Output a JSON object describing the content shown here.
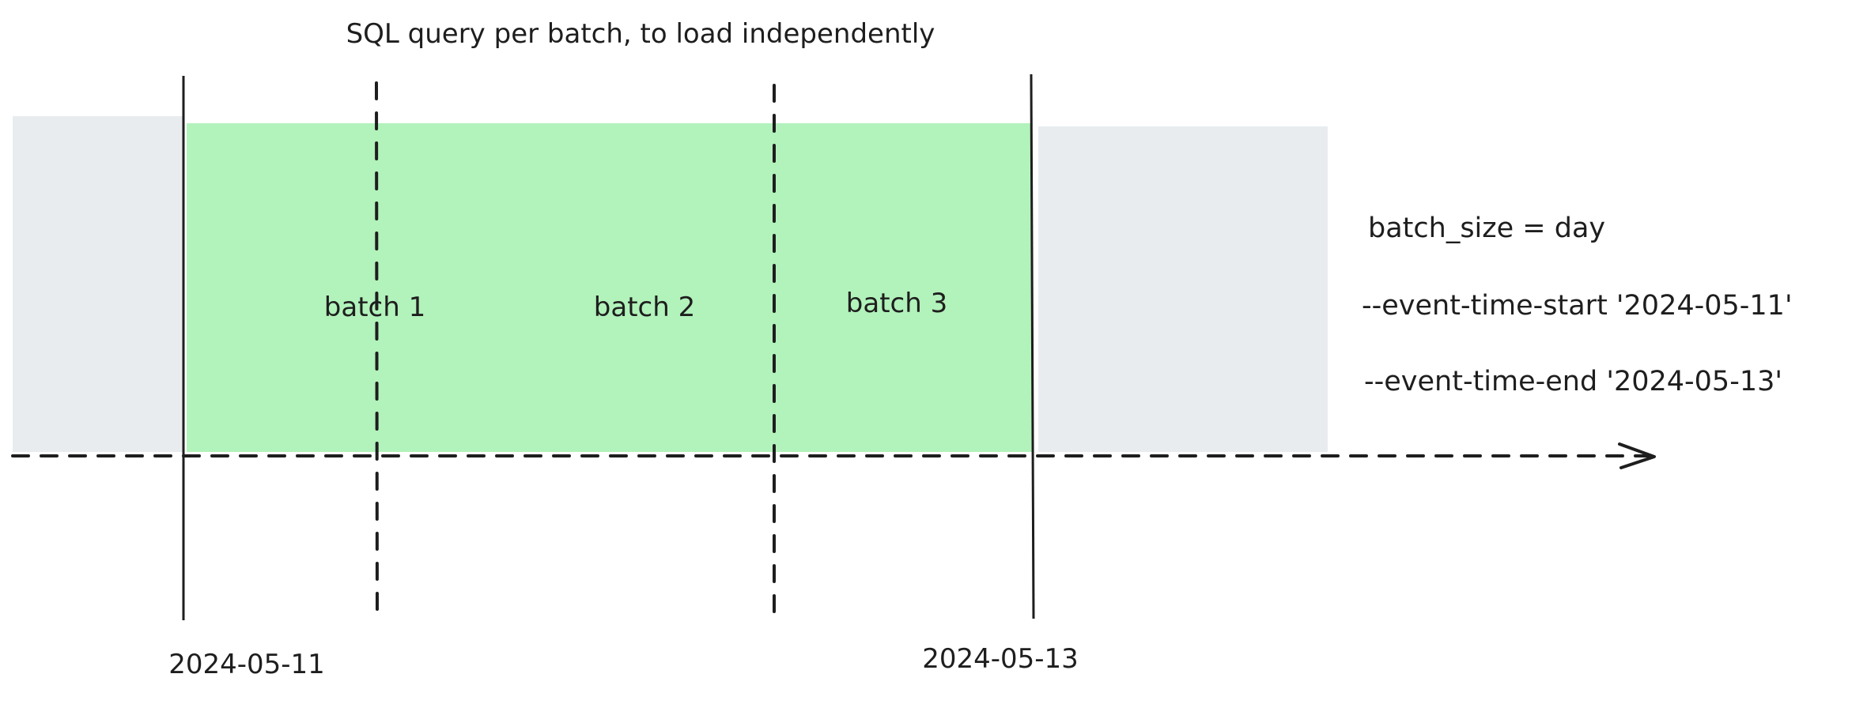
{
  "title": "SQL query per batch, to load independently",
  "batches": [
    {
      "label": "batch 1"
    },
    {
      "label": "batch 2"
    },
    {
      "label": "batch 3"
    }
  ],
  "dates": {
    "start": "2024-05-11",
    "end": "2024-05-13"
  },
  "config": [
    "batch_size = day",
    "--event-time-start '2024-05-11'",
    "--event-time-end '2024-05-13'"
  ],
  "colors": {
    "selected_range": "#b2f2bb",
    "outside_range": "#e8ecef",
    "stroke": "#1e1e1e"
  }
}
